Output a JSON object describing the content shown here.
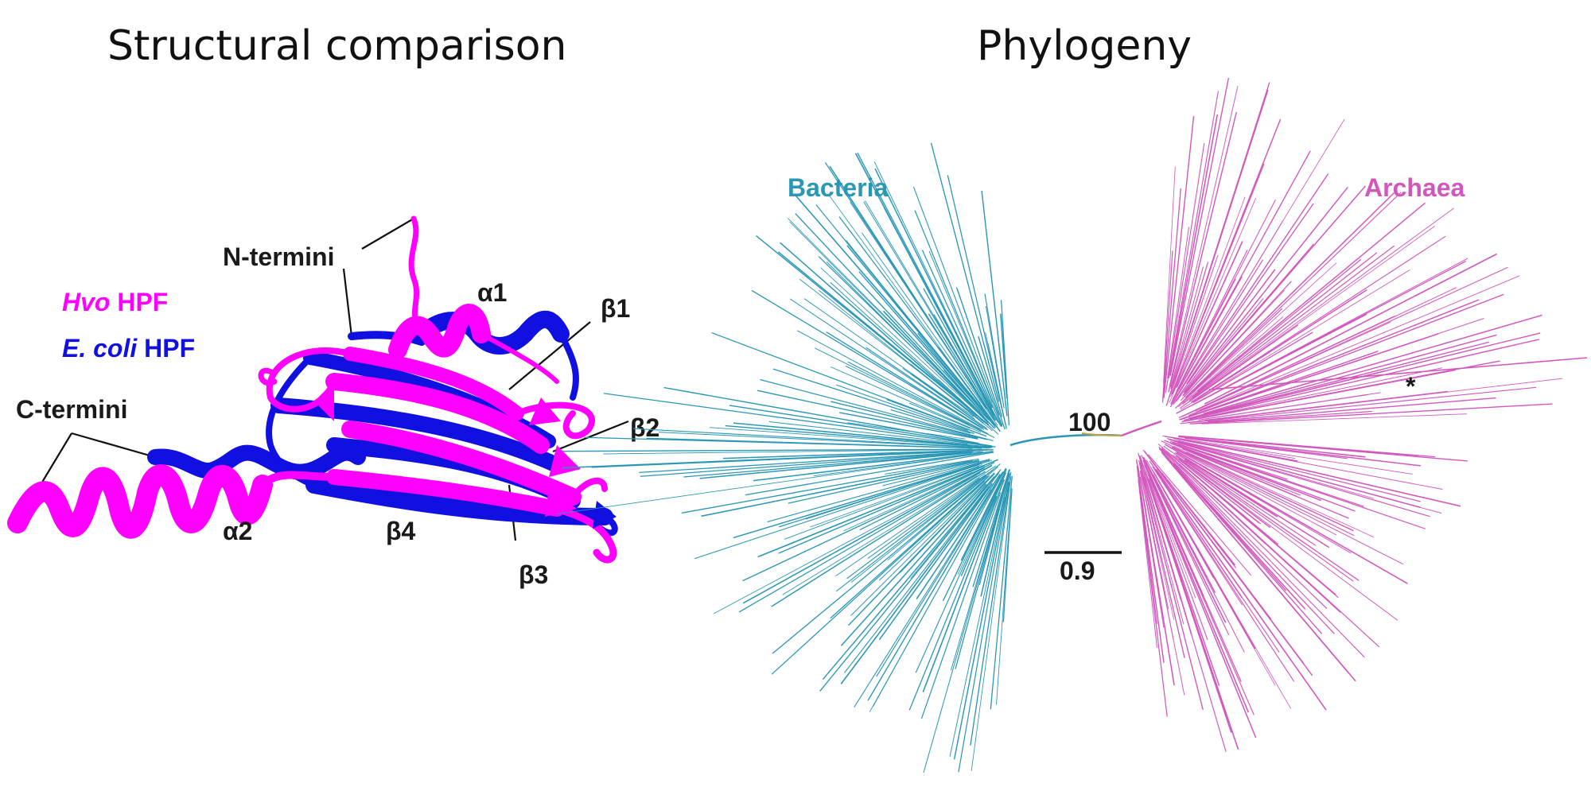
{
  "panels": {
    "structural": {
      "title": "Structural comparison",
      "legend": [
        {
          "species": "Hvo",
          "suffix": " HPF",
          "color": "#ff00ff"
        },
        {
          "species": "E. coli",
          "suffix": " HPF",
          "color": "#1010e0"
        }
      ],
      "labels": {
        "n_termini": "N-termini",
        "c_termini": "C-termini",
        "a1": "α1",
        "a2": "α2",
        "b1": "β1",
        "b2": "β2",
        "b3": "β3",
        "b4": "β4"
      },
      "colors": {
        "hvo": "#ff00ff",
        "ecoli": "#1010e0"
      }
    },
    "phylogeny": {
      "title": "Phylogeny",
      "clades": [
        {
          "name": "Bacteria",
          "color": "#2a97b5"
        },
        {
          "name": "Archaea",
          "color": "#d257bd"
        }
      ],
      "bootstrap": "100",
      "scale_bar": "0.9",
      "asterisk": "*"
    }
  }
}
